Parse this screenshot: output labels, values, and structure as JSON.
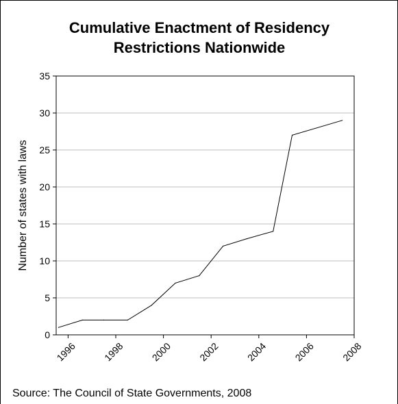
{
  "chart_data": {
    "type": "line",
    "title_lines": [
      "Cumulative Enactment of Residency",
      "Restrictions Nationwide"
    ],
    "ylabel": "Number of states with laws",
    "xlabel": "",
    "source": "Source: The Council of State Governments, 2008",
    "xlim": [
      1995.5,
      2008.0
    ],
    "ylim": [
      0,
      35
    ],
    "x_ticks": [
      1996,
      1998,
      2000,
      2002,
      2004,
      2006,
      2008
    ],
    "x_tick_labels": [
      "1996",
      "1998",
      "2000",
      "2002",
      "2004",
      "2006",
      "2008"
    ],
    "y_ticks": [
      0,
      5,
      10,
      15,
      20,
      25,
      30,
      35
    ],
    "y_tick_labels": [
      "0",
      "5",
      "10",
      "15",
      "20",
      "25",
      "30",
      "35"
    ],
    "grid": true,
    "series": [
      {
        "x": [
          1995.6,
          1996.6,
          1997.5,
          1998.5,
          1999.5,
          2000.5,
          2001.5,
          2002.5,
          2003.5,
          2004.6,
          2005.4,
          2007.5
        ],
        "y": [
          1,
          2,
          2,
          2,
          4,
          7,
          8,
          12,
          13,
          14,
          27,
          29
        ],
        "color": "#000000"
      }
    ]
  }
}
